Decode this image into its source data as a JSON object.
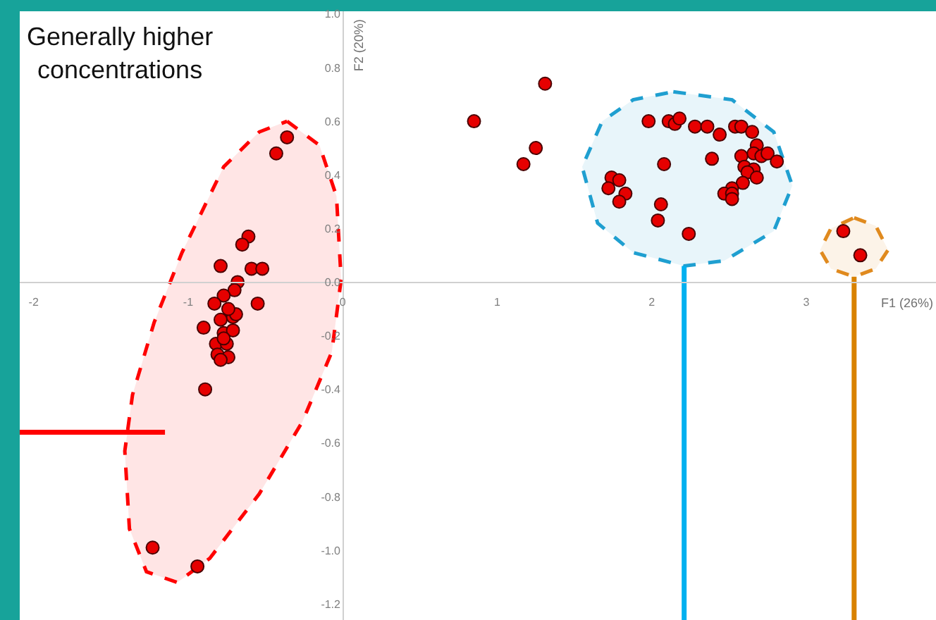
{
  "chart_data": {
    "type": "scatter",
    "xlabel": "F1 (26%)",
    "ylabel": "F2 (20%)",
    "annotations": [
      "Generally higher\nconcentrations"
    ],
    "xlim": [
      -2.09,
      3.84
    ],
    "ylim": [
      -1.26,
      1.01
    ],
    "xticks": [
      -2,
      -1,
      0,
      1,
      2,
      3
    ],
    "yticks": [
      {
        "value": 1.0,
        "label": "1.0"
      },
      {
        "value": 0.8,
        "label": "0.8"
      },
      {
        "value": 0.6,
        "label": "0.6"
      },
      {
        "value": 0.4,
        "label": "0.4"
      },
      {
        "value": 0.2,
        "label": "0.2"
      },
      {
        "value": 0.0,
        "label": "0.0"
      },
      {
        "value": -0.2,
        "label": "-0.2"
      },
      {
        "value": -0.4,
        "label": "-0.4"
      },
      {
        "value": -0.6,
        "label": "-0.6"
      },
      {
        "value": -0.8,
        "label": "-0.8"
      },
      {
        "value": -1.0,
        "label": "-1.0"
      },
      {
        "value": -1.2,
        "label": "-1.2"
      }
    ],
    "series": [
      {
        "type": "area",
        "line_style": "dashed",
        "color": "#ff0000",
        "x": [
          -0.36,
          -0.15,
          -0.04,
          -0.01,
          -0.07,
          -0.26,
          -0.54,
          -0.86,
          -1.07,
          -1.27,
          -1.38,
          -1.41,
          -1.36,
          -1.22,
          -1.04,
          -0.77,
          -0.54,
          -0.36
        ],
        "values": [
          0.6,
          0.51,
          0.32,
          0.01,
          -0.26,
          -0.52,
          -0.79,
          -1.03,
          -1.12,
          -1.08,
          -0.92,
          -0.63,
          -0.42,
          -0.15,
          0.11,
          0.43,
          0.56,
          0.6
        ]
      },
      {
        "type": "area",
        "line_style": "dashed",
        "color": "#1f9fd0",
        "x": [
          2.14,
          2.52,
          2.79,
          2.91,
          2.79,
          2.47,
          2.21,
          1.88,
          1.65,
          1.55,
          1.68,
          1.88,
          2.14
        ],
        "values": [
          0.71,
          0.68,
          0.56,
          0.36,
          0.19,
          0.08,
          0.06,
          0.11,
          0.22,
          0.43,
          0.6,
          0.68,
          0.71
        ]
      },
      {
        "type": "area",
        "line_style": "dashed",
        "color": "#e08a1e",
        "x": [
          3.31,
          3.45,
          3.53,
          3.45,
          3.31,
          3.16,
          3.09,
          3.16,
          3.31
        ],
        "values": [
          0.24,
          0.21,
          0.12,
          0.05,
          0.02,
          0.05,
          0.12,
          0.2,
          0.24
        ]
      },
      {
        "type": "line",
        "line_style": "solid",
        "color": "#ff0000",
        "x": [
          -2.09,
          -1.15
        ],
        "values": [
          -0.56,
          -0.56
        ]
      },
      {
        "type": "line",
        "line_style": "solid",
        "color": "#00b0f0",
        "x": [
          2.21,
          2.21
        ],
        "values": [
          0.06,
          -1.26
        ]
      },
      {
        "type": "line",
        "line_style": "solid",
        "color": "#d98200",
        "x": [
          3.31,
          3.31
        ],
        "values": [
          0.02,
          -1.26
        ]
      },
      {
        "color": "#e60000",
        "marker": "circle",
        "x": [
          -0.36,
          -0.43,
          -0.61,
          -0.65,
          -0.79,
          -0.59,
          -0.52,
          -0.68,
          -0.7,
          -0.77,
          -0.83,
          -0.55,
          -0.9,
          -0.79,
          -0.77,
          -0.71,
          -0.82,
          -0.75,
          -0.81,
          -0.74,
          -0.79,
          -0.71,
          -0.69,
          -0.89,
          -1.23,
          -0.94,
          -0.74,
          -0.77,
          0.85,
          1.17,
          1.25,
          1.31,
          1.98,
          2.11,
          2.15,
          2.18,
          2.28,
          2.36,
          2.44,
          2.54,
          2.58,
          2.65,
          2.68,
          2.58,
          2.66,
          2.71,
          2.75,
          2.81,
          2.39,
          2.08,
          2.6,
          2.66,
          2.62,
          2.68,
          2.59,
          2.52,
          2.47,
          2.52,
          2.52,
          1.74,
          1.79,
          1.72,
          1.83,
          1.79,
          2.06,
          2.04,
          2.24,
          3.24,
          3.35
        ],
        "values": [
          0.54,
          0.48,
          0.17,
          0.14,
          0.06,
          0.05,
          0.05,
          0.0,
          -0.03,
          -0.05,
          -0.08,
          -0.08,
          -0.17,
          -0.14,
          -0.19,
          -0.18,
          -0.23,
          -0.23,
          -0.27,
          -0.28,
          -0.29,
          -0.13,
          -0.12,
          -0.4,
          -0.99,
          -1.06,
          -0.1,
          -0.21,
          0.6,
          0.44,
          0.5,
          0.74,
          0.6,
          0.6,
          0.59,
          0.61,
          0.58,
          0.58,
          0.55,
          0.58,
          0.58,
          0.56,
          0.51,
          0.47,
          0.48,
          0.47,
          0.48,
          0.45,
          0.46,
          0.44,
          0.43,
          0.42,
          0.41,
          0.39,
          0.37,
          0.35,
          0.33,
          0.33,
          0.31,
          0.39,
          0.38,
          0.35,
          0.33,
          0.3,
          0.29,
          0.23,
          0.18,
          0.19,
          0.1
        ]
      }
    ]
  }
}
